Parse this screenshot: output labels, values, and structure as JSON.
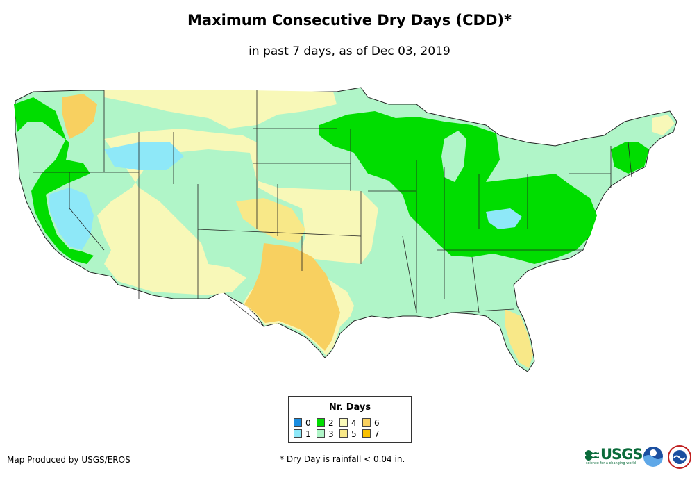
{
  "title": "Maximum Consecutive Dry Days (CDD)*",
  "subtitle": "in past 7 days, as of Dec 03, 2019",
  "legend": {
    "title": "Nr. Days",
    "items": [
      {
        "label": "0",
        "color": "#1a8de0"
      },
      {
        "label": "1",
        "color": "#8ee8f8"
      },
      {
        "label": "2",
        "color": "#00dd00"
      },
      {
        "label": "3",
        "color": "#b0f5c8"
      },
      {
        "label": "4",
        "color": "#f8f8b8"
      },
      {
        "label": "5",
        "color": "#f8e888"
      },
      {
        "label": "6",
        "color": "#f8d060"
      },
      {
        "label": "7",
        "color": "#f8c000"
      }
    ]
  },
  "credit": "Map Produced by USGS/EROS",
  "footnote": "* Dry Day is rainfall < 0.04 in.",
  "logos": {
    "usgs_text": "USGS",
    "usgs_tagline": "science for a changing world"
  }
}
